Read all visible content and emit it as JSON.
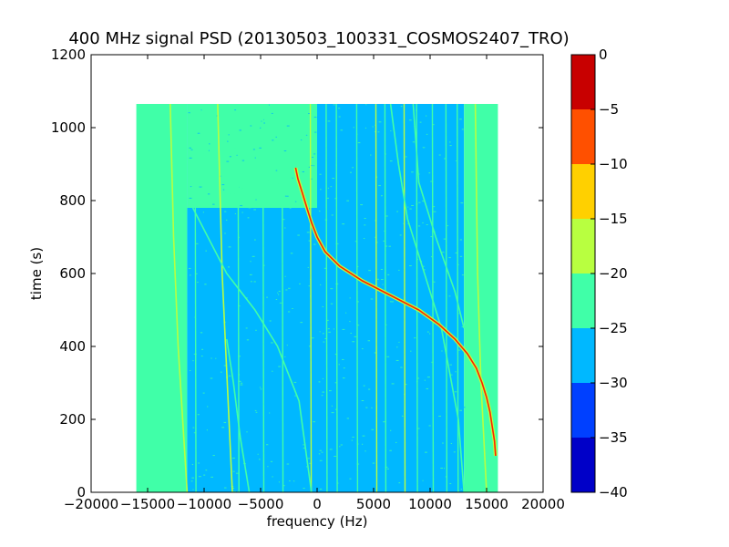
{
  "chart_data": {
    "type": "heatmap",
    "title": "400 MHz signal PSD (20130503_100331_COSMOS2407_TRO)",
    "xlabel": "frequency (Hz)",
    "ylabel": "time (s)",
    "xlim": [
      -20000,
      20000
    ],
    "ylim": [
      0,
      1200
    ],
    "xticks": [
      -20000,
      -15000,
      -10000,
      -5000,
      0,
      5000,
      10000,
      15000,
      20000
    ],
    "yticks": [
      0,
      200,
      400,
      600,
      800,
      1000,
      1200
    ],
    "data_extent": {
      "x": [
        -16000,
        16000
      ],
      "y": [
        0,
        1065
      ]
    },
    "colorbar": {
      "levels": [
        -40,
        -35,
        -30,
        -25,
        -20,
        -15,
        -10,
        -5,
        0
      ],
      "tick_labels": [
        "−40",
        "−35",
        "−30",
        "−25",
        "−20",
        "−15",
        "−10",
        "−5",
        "0"
      ],
      "colors": [
        "#0000c8",
        "#0040ff",
        "#00b8ff",
        "#40ffa8",
        "#b8ff40",
        "#ffd000",
        "#ff5000",
        "#c80000"
      ]
    },
    "background_regions": [
      {
        "x": [
          -16000,
          -11500
        ],
        "y": [
          0,
          1065
        ],
        "level_color": "#40ffa8"
      },
      {
        "x": [
          -11500,
          13000
        ],
        "y": [
          0,
          1065
        ],
        "level_color": "#00b8ff"
      },
      {
        "x": [
          13000,
          16000
        ],
        "y": [
          0,
          1065
        ],
        "level_color": "#40ffa8"
      },
      {
        "x": [
          -11500,
          0
        ],
        "y": [
          780,
          1065
        ],
        "level_color": "#40ffa8"
      }
    ],
    "doppler_trace": {
      "color": "#ff2000",
      "points": [
        {
          "t": 890,
          "f": -1900
        },
        {
          "t": 860,
          "f": -1700
        },
        {
          "t": 820,
          "f": -1300
        },
        {
          "t": 780,
          "f": -900
        },
        {
          "t": 740,
          "f": -500
        },
        {
          "t": 700,
          "f": 0
        },
        {
          "t": 660,
          "f": 700
        },
        {
          "t": 620,
          "f": 2000
        },
        {
          "t": 580,
          "f": 4000
        },
        {
          "t": 540,
          "f": 6500
        },
        {
          "t": 500,
          "f": 9000
        },
        {
          "t": 460,
          "f": 10800
        },
        {
          "t": 420,
          "f": 12200
        },
        {
          "t": 380,
          "f": 13300
        },
        {
          "t": 340,
          "f": 14100
        },
        {
          "t": 300,
          "f": 14600
        },
        {
          "t": 260,
          "f": 15000
        },
        {
          "t": 220,
          "f": 15300
        },
        {
          "t": 180,
          "f": 15500
        },
        {
          "t": 140,
          "f": 15700
        },
        {
          "t": 100,
          "f": 15800
        }
      ]
    },
    "secondary_traces": [
      {
        "color": "#b8ff40",
        "points": [
          {
            "t": 1065,
            "f": -13000
          },
          {
            "t": 700,
            "f": -12700
          },
          {
            "t": 400,
            "f": -12300
          },
          {
            "t": 0,
            "f": -11500
          }
        ]
      },
      {
        "color": "#b8ff40",
        "points": [
          {
            "t": 1065,
            "f": -8800
          },
          {
            "t": 600,
            "f": -8400
          },
          {
            "t": 0,
            "f": -7500
          }
        ]
      },
      {
        "color": "#b8ff40",
        "points": [
          {
            "t": 1065,
            "f": 14000
          },
          {
            "t": 600,
            "f": 14200
          },
          {
            "t": 300,
            "f": 14500
          },
          {
            "t": 0,
            "f": 15000
          }
        ]
      },
      {
        "color": "#40ffa8",
        "points": [
          {
            "t": 780,
            "f": -11000
          },
          {
            "t": 600,
            "f": -8000
          },
          {
            "t": 500,
            "f": -5500
          },
          {
            "t": 400,
            "f": -3500
          },
          {
            "t": 250,
            "f": -1600
          },
          {
            "t": 0,
            "f": -500
          }
        ]
      },
      {
        "color": "#40ffa8",
        "points": [
          {
            "t": 1065,
            "f": 6500
          },
          {
            "t": 900,
            "f": 7200
          },
          {
            "t": 750,
            "f": 8000
          },
          {
            "t": 600,
            "f": 9500
          },
          {
            "t": 450,
            "f": 11000
          },
          {
            "t": 200,
            "f": 12500
          },
          {
            "t": 0,
            "f": 13000
          }
        ]
      },
      {
        "color": "#40ffa8",
        "points": [
          {
            "t": 1065,
            "f": 8500
          },
          {
            "t": 850,
            "f": 9000
          },
          {
            "t": 700,
            "f": 10500
          },
          {
            "t": 550,
            "f": 12200
          },
          {
            "t": 450,
            "f": 13000
          }
        ]
      },
      {
        "color": "#40ffa8",
        "points": [
          {
            "t": 420,
            "f": -8000
          },
          {
            "t": 300,
            "f": -7400
          },
          {
            "t": 150,
            "f": -6800
          },
          {
            "t": 0,
            "f": -6000
          }
        ]
      }
    ],
    "vertical_lines": [
      {
        "f": -14000,
        "color": "#40ffa8"
      },
      {
        "f": -10800,
        "color": "#40ffa8"
      },
      {
        "f": -7000,
        "color": "#40ffa8"
      },
      {
        "f": -4800,
        "color": "#40ffa8"
      },
      {
        "f": -3100,
        "color": "#40ffa8"
      },
      {
        "f": -600,
        "color": "#b8ff40"
      },
      {
        "f": 800,
        "color": "#40ffa8"
      },
      {
        "f": 1700,
        "color": "#40ffa8"
      },
      {
        "f": 3500,
        "color": "#40ffa8"
      },
      {
        "f": 5200,
        "color": "#b8ff40"
      },
      {
        "f": 6000,
        "color": "#40ffa8"
      },
      {
        "f": 7700,
        "color": "#b8ff40"
      },
      {
        "f": 8800,
        "color": "#40ffa8"
      },
      {
        "f": 10200,
        "color": "#40ffa8"
      },
      {
        "f": 11400,
        "color": "#40ffa8"
      },
      {
        "f": 12400,
        "color": "#40ffa8"
      }
    ]
  }
}
